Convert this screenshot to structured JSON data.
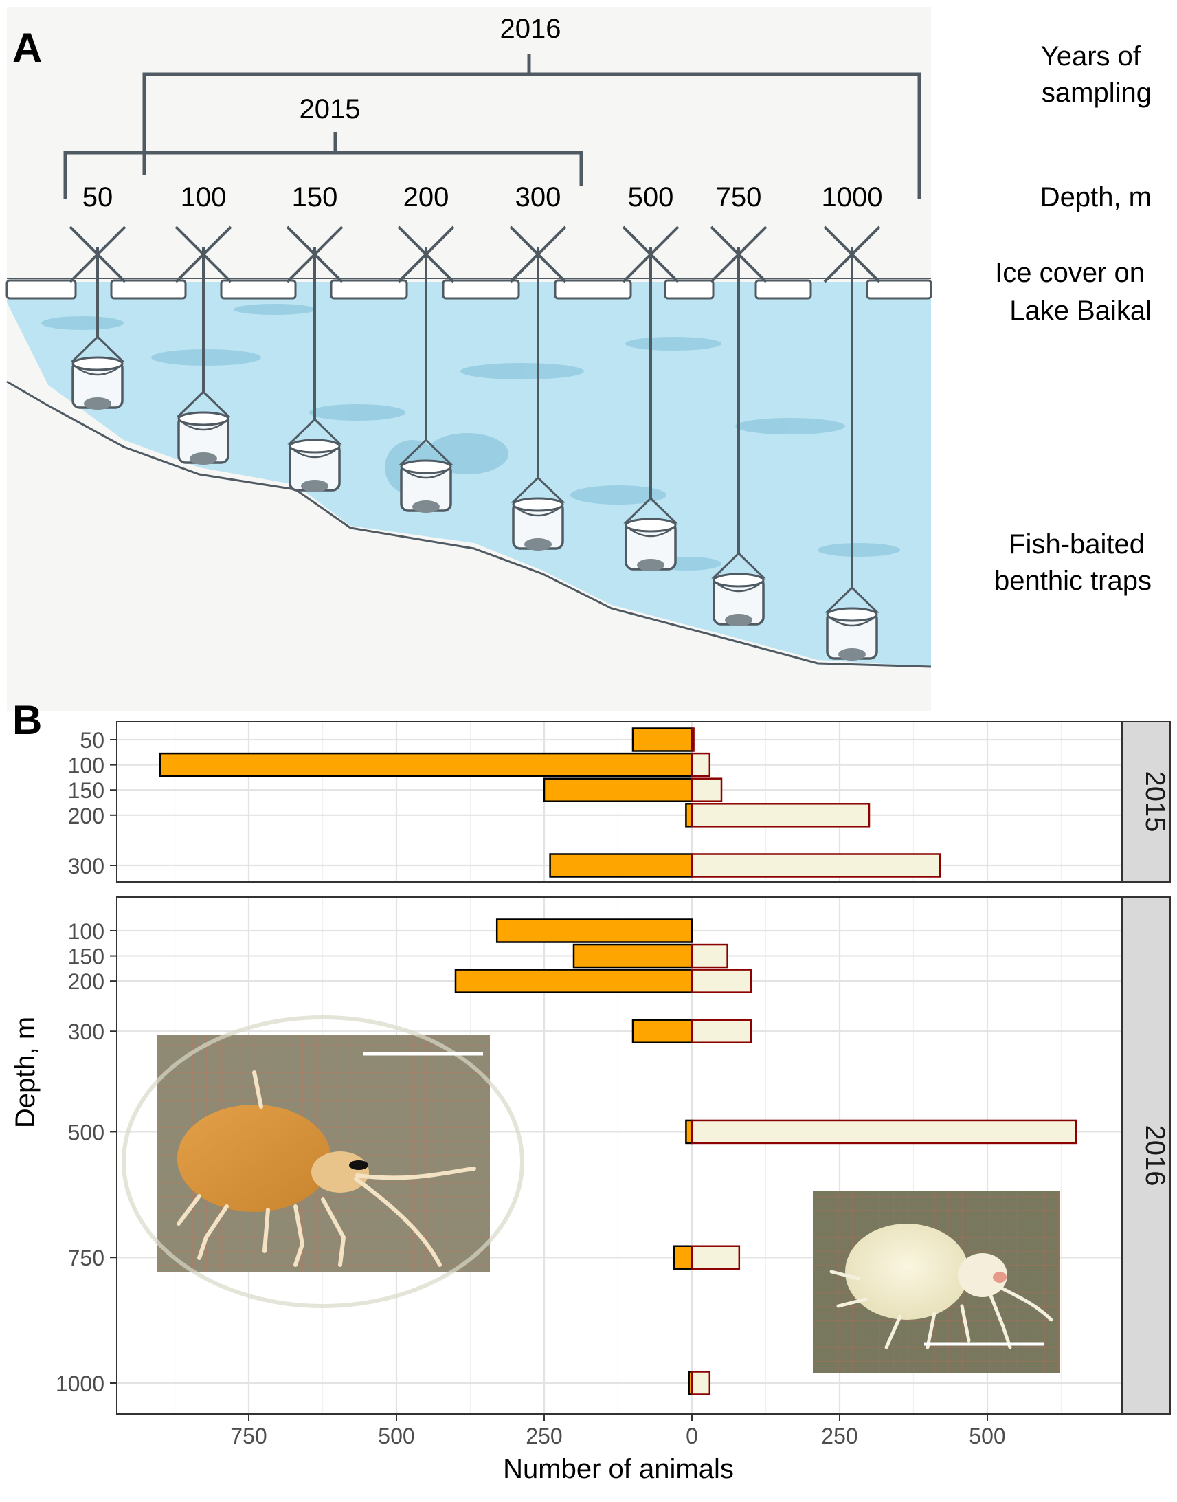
{
  "panel_a": {
    "label": "A",
    "years": [
      {
        "label": "2016",
        "depths": [
          "50",
          "100",
          "150",
          "200",
          "300",
          "500",
          "750",
          "1000"
        ]
      },
      {
        "label": "2015",
        "depths": [
          "50",
          "100",
          "150",
          "200",
          "300"
        ]
      }
    ],
    "depth_labels": [
      "50",
      "100",
      "150",
      "200",
      "300",
      "500",
      "750",
      "1000"
    ],
    "side_labels": {
      "years_line1": "Years of",
      "years_line2": "sampling",
      "depth": "Depth, m",
      "ice_line1": "Ice cover on",
      "ice_line2": "Lake Baikal",
      "traps_line1": "Fish-baited",
      "traps_line2": "benthic traps"
    }
  },
  "panel_b": {
    "label": "B",
    "xlabel": "Number of animals",
    "ylabel": "Depth, m",
    "x_ticks": [
      -750,
      -500,
      -250,
      0,
      250,
      500
    ],
    "x_tick_labels": [
      "750",
      "500",
      "250",
      "0",
      "250",
      "500"
    ],
    "photo_left": {
      "kind": "amphipod photo, orange"
    },
    "photo_right": {
      "kind": "amphipod photo, pale"
    }
  },
  "chart_data": {
    "type": "bar",
    "orientation": "horizontal",
    "grid": true,
    "xlim": [
      -900,
      680
    ],
    "series": [
      {
        "name": "",
        "direction": "left",
        "fill": "#FFA500",
        "stroke": "#000000"
      },
      {
        "name": "",
        "direction": "right",
        "fill": "#F5F3DC",
        "stroke": "#8B0000"
      }
    ],
    "facets": [
      {
        "strip": "2015",
        "y_ticks": [
          50,
          100,
          150,
          200,
          300
        ],
        "ylim": [
          335,
          15
        ],
        "rows": [
          {
            "depth": 50,
            "left": 100,
            "right": 3
          },
          {
            "depth": 100,
            "left": 900,
            "right": 30
          },
          {
            "depth": 150,
            "left": 250,
            "right": 50
          },
          {
            "depth": 200,
            "left": 10,
            "right": 300
          },
          {
            "depth": 300,
            "left": 240,
            "right": 420
          }
        ]
      },
      {
        "strip": "2016",
        "y_ticks": [
          100,
          150,
          200,
          300,
          500,
          750,
          1000
        ],
        "ylim": [
          1065,
          35
        ],
        "rows": [
          {
            "depth": 100,
            "left": 330,
            "right": 0
          },
          {
            "depth": 150,
            "left": 200,
            "right": 60
          },
          {
            "depth": 200,
            "left": 400,
            "right": 100
          },
          {
            "depth": 300,
            "left": 100,
            "right": 100
          },
          {
            "depth": 500,
            "left": 10,
            "right": 650
          },
          {
            "depth": 750,
            "left": 30,
            "right": 80
          },
          {
            "depth": 1000,
            "left": 5,
            "right": 30
          }
        ]
      }
    ]
  }
}
